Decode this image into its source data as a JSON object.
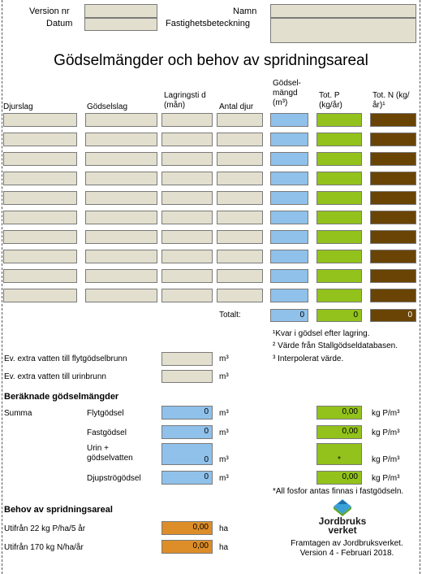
{
  "meta": {
    "version_label": "Version nr",
    "date_label": "Datum",
    "name_label": "Namn",
    "property_label": "Fastighetsbeteckning"
  },
  "title": "Gödselmängder och behov av spridningsareal",
  "table": {
    "col_djurslag": "Djurslag",
    "col_godselslag": "Gödselslag",
    "col_lagringstid": "Lagringsti d (mån)",
    "col_antal": "Antal djur",
    "col_godselmangd": "Gödsel- mängd (m³)",
    "col_totp": "Tot. P (kg/år)",
    "col_totn": "Tot. N (kg/år)¹",
    "rows": 10,
    "total_label": "Totalt:",
    "total_m3": "0",
    "total_p": "0",
    "total_n": "0"
  },
  "footnotes": {
    "f1": "¹Kvar i gödsel efter lagring.",
    "f2": "² Värde från Stallgödseldatabasen.",
    "f3": "³ Interpolerat värde."
  },
  "extra": {
    "flyt_label": "Ev. extra vatten till flytgödselbrunn",
    "urin_label": "Ev. extra vatten till urinbrunn",
    "unit_m3": "m³"
  },
  "calc": {
    "heading": "Beräknade gödselmängder",
    "summa": "Summa",
    "rows": [
      {
        "label": "Flytgödsel",
        "m3": "0",
        "p": "0,00",
        "unit": "kg P/m³"
      },
      {
        "label": "Fastgödsel",
        "m3": "0",
        "p": "0,00",
        "unit": "kg P/m³"
      },
      {
        "label": "Urin + gödselvatten",
        "m3": "0",
        "p": "*",
        "unit": "kg P/m³"
      },
      {
        "label": "Djupströgödsel",
        "m3": "0",
        "p": "0,00",
        "unit": "kg P/m³"
      }
    ],
    "note": "*All fosfor antas finnas i fastgödseln."
  },
  "area": {
    "heading": "Behov av spridningsareal",
    "rows": [
      {
        "label": "Utifrån 22 kg P/ha/5 år",
        "value": "0,00",
        "unit": "ha"
      },
      {
        "label": "Utifrån 170 kg N/ha/år",
        "value": "0,00",
        "unit": "ha"
      }
    ]
  },
  "footer": {
    "logo_line1": "Jordbruks",
    "logo_line2": "verket",
    "line1": "Framtagen av Jordbruksverket.",
    "line2": "Version 4 - Februari 2018."
  },
  "colors": {
    "input": "#e3dfce",
    "volume": "#8fc1ea",
    "phosphorus": "#92c21b",
    "nitrogen": "#6a4404",
    "area": "#dd8e28"
  }
}
